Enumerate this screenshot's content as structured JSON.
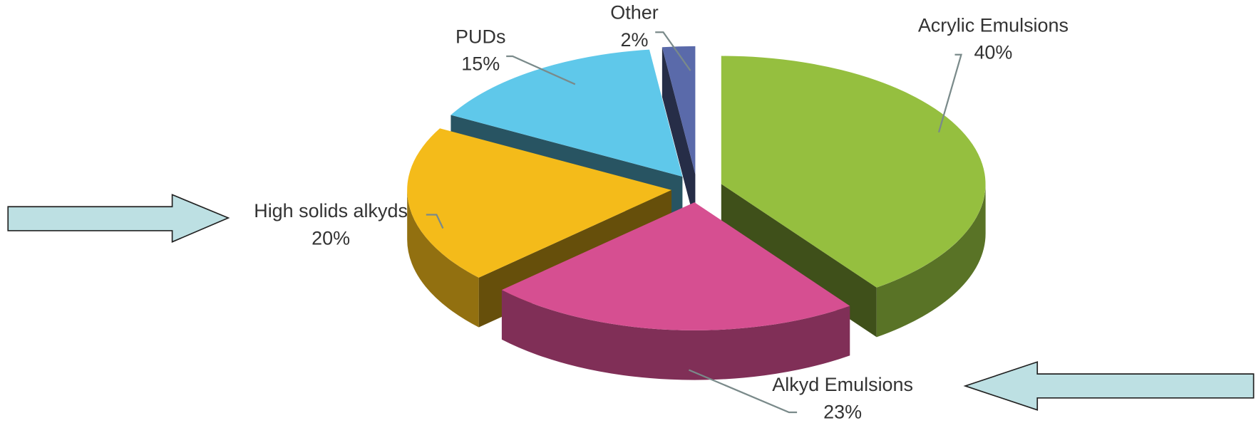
{
  "chart_data": {
    "type": "pie3d",
    "categories": [
      "Acrylic Emulsions",
      "Alkyd Emulsions",
      "High solids alkyds",
      "PUDs",
      "Other"
    ],
    "values": [
      40,
      23,
      20,
      15,
      2
    ],
    "value_labels": [
      "40%",
      "23%",
      "20%",
      "15%",
      "2%"
    ],
    "colors": [
      "#95bf3f",
      "#d64f91",
      "#f4bb1a",
      "#5fc8ea",
      "#5a6aaa"
    ]
  }
}
